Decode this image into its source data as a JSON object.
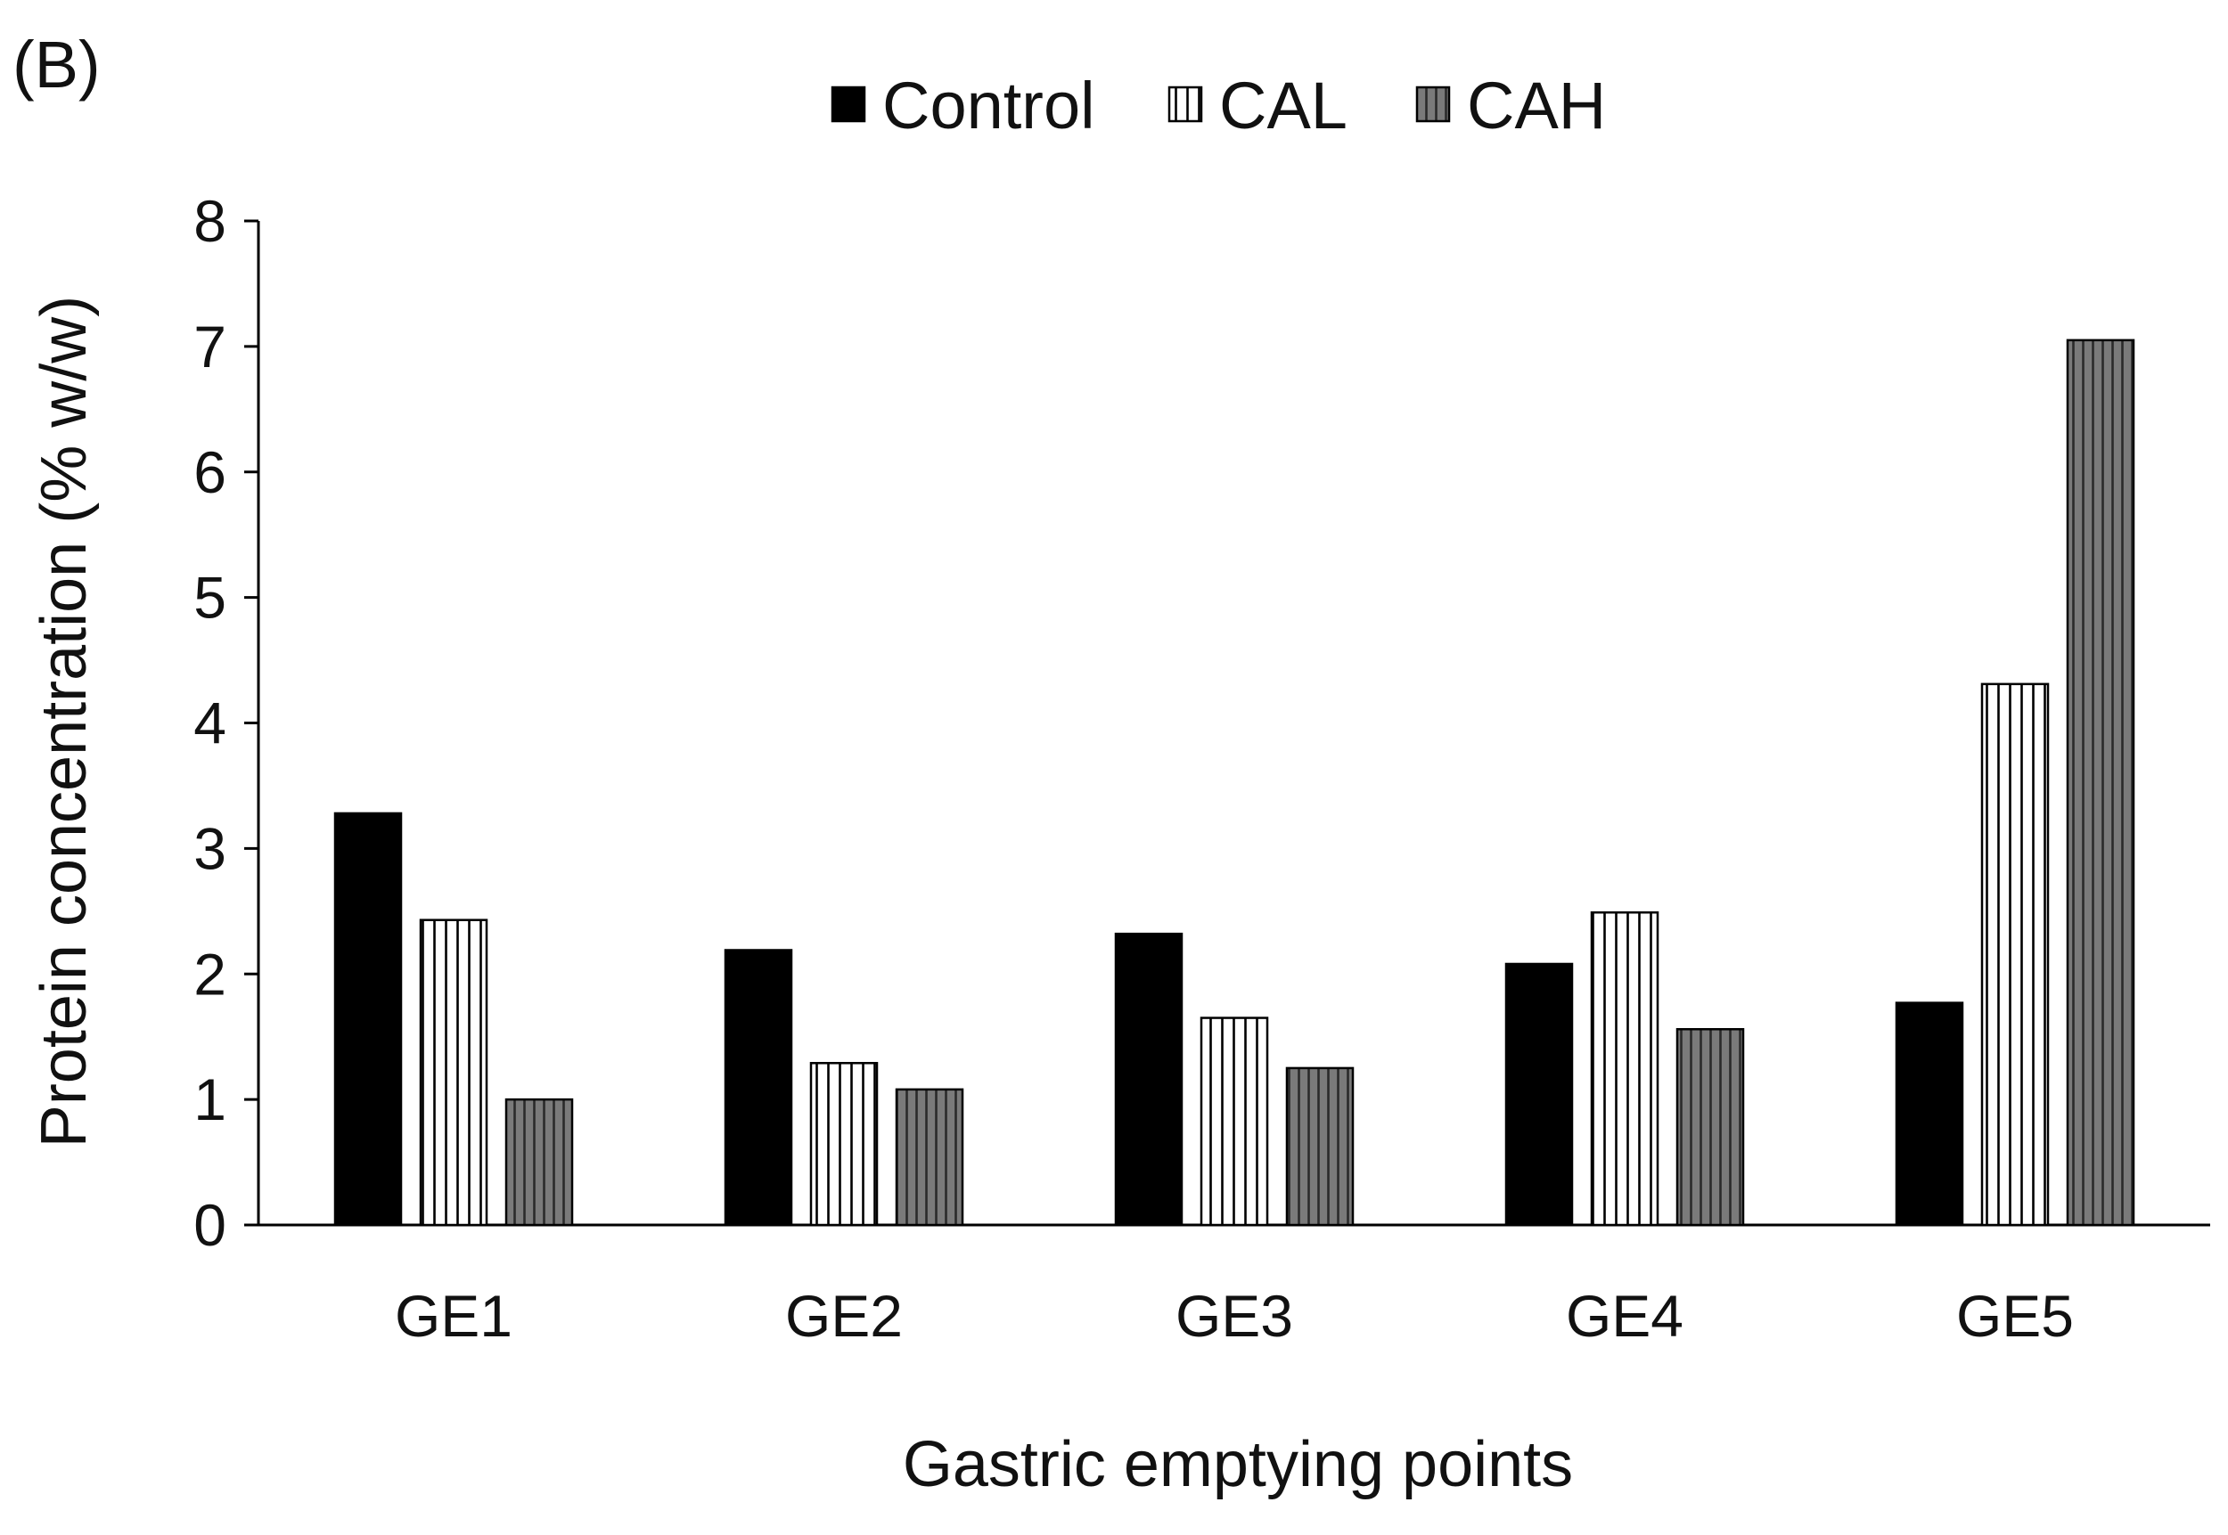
{
  "panel_label": "(B)",
  "chart_data": {
    "type": "bar",
    "categories": [
      "GE1",
      "GE2",
      "GE3",
      "GE4",
      "GE5"
    ],
    "series": [
      {
        "name": "Control",
        "values": [
          3.28,
          2.19,
          2.32,
          2.08,
          1.77
        ],
        "color": "#000000",
        "pattern": "solid"
      },
      {
        "name": "CAL",
        "values": [
          2.43,
          1.29,
          1.65,
          2.49,
          4.31
        ],
        "color": "#ffffff",
        "pattern": "vertical-stripes-light"
      },
      {
        "name": "CAH",
        "values": [
          1.0,
          1.08,
          1.25,
          1.56,
          7.05
        ],
        "color": "#6e6e6e",
        "pattern": "vertical-stripes-dark"
      }
    ],
    "title": "",
    "xlabel": "Gastric emptying points",
    "ylabel": "Protein concentration (% w/w)",
    "ylim": [
      0,
      8
    ],
    "yticks": [
      "0",
      "1",
      "2",
      "3",
      "4",
      "5",
      "6",
      "7",
      "8"
    ],
    "grid": false,
    "legend": "top-center"
  }
}
